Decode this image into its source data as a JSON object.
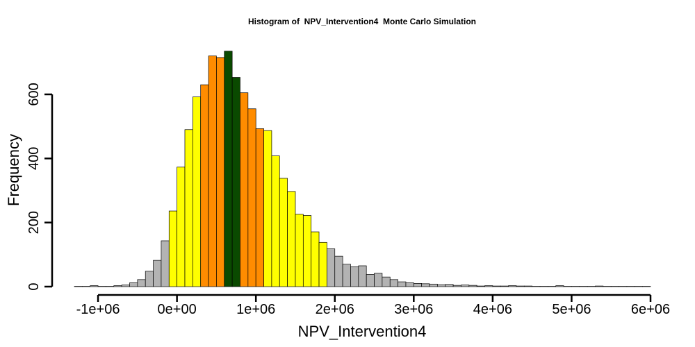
{
  "chart_data": {
    "type": "bar",
    "title": "Histogram of  NPV_Intervention4  Monte Carlo Simulation",
    "xlabel": "NPV_Intervention4",
    "ylabel": "Frequency",
    "x_bin_start": -1300000,
    "bin_width": 100000,
    "xlim": [
      -1300000,
      6000000
    ],
    "ylim": [
      0,
      750
    ],
    "x_ticks": [
      -1000000,
      0,
      1000000,
      2000000,
      3000000,
      4000000,
      5000000,
      6000000
    ],
    "x_tick_labels": [
      "-1e+06",
      "0e+00",
      "1e+06",
      "2e+06",
      "3e+06",
      "4e+06",
      "5e+06",
      "6e+06"
    ],
    "y_ticks": [
      0,
      200,
      400,
      600
    ],
    "y_tick_labels": [
      "0",
      "200",
      "400",
      "600"
    ],
    "values": [
      1,
      1,
      3,
      1,
      1,
      3,
      5,
      12,
      22,
      48,
      82,
      143,
      236,
      373,
      490,
      592,
      630,
      720,
      715,
      735,
      653,
      605,
      555,
      493,
      487,
      408,
      338,
      297,
      226,
      222,
      171,
      138,
      118,
      95,
      70,
      62,
      65,
      38,
      42,
      30,
      22,
      15,
      12,
      10,
      9,
      8,
      6,
      7,
      4,
      5,
      4,
      2,
      3,
      2,
      2,
      3,
      2,
      2,
      1,
      1,
      1,
      3,
      1,
      1,
      1,
      1,
      2,
      1,
      1,
      1,
      1,
      1,
      1
    ],
    "colors": {
      "gray": "#b3b3b3",
      "yellow": "#ffff00",
      "orange": "#ff8c00",
      "green": "#0a4a00"
    },
    "bar_color_groups": [
      "gray",
      "gray",
      "gray",
      "gray",
      "gray",
      "gray",
      "gray",
      "gray",
      "gray",
      "gray",
      "gray",
      "gray",
      "yellow",
      "yellow",
      "yellow",
      "yellow",
      "orange",
      "orange",
      "orange",
      "green",
      "green",
      "orange",
      "orange",
      "orange",
      "yellow",
      "yellow",
      "yellow",
      "yellow",
      "yellow",
      "yellow",
      "yellow",
      "yellow",
      "gray",
      "gray",
      "gray",
      "gray",
      "gray",
      "gray",
      "gray",
      "gray",
      "gray",
      "gray",
      "gray",
      "gray",
      "gray",
      "gray",
      "gray",
      "gray",
      "gray",
      "gray",
      "gray",
      "gray",
      "gray",
      "gray",
      "gray",
      "gray",
      "gray",
      "gray",
      "gray",
      "gray",
      "gray",
      "gray",
      "gray",
      "gray",
      "gray",
      "gray",
      "gray",
      "gray",
      "gray",
      "gray",
      "gray",
      "gray",
      "gray"
    ]
  }
}
